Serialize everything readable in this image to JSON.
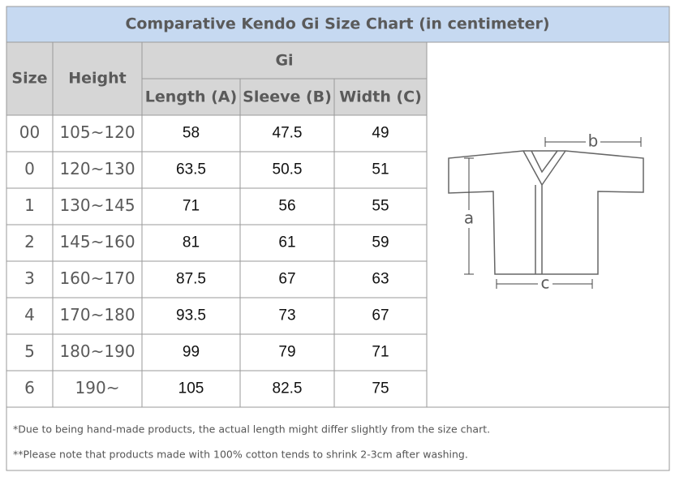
{
  "header": {
    "title": "Comparative Kendo Gi Size Chart (in centimeter)"
  },
  "table": {
    "columns": [
      "Size",
      "Height"
    ],
    "group": "Gi",
    "subcolumns": [
      "Length (A)",
      "Sleeve (B)",
      "Width (C)"
    ],
    "rows": [
      [
        "00",
        "105~120",
        "58",
        "47.5",
        "49"
      ],
      [
        "0",
        "120~130",
        "63.5",
        "50.5",
        "51"
      ],
      [
        "1",
        "130~145",
        "71",
        "56",
        "55"
      ],
      [
        "2",
        "145~160",
        "81",
        "61",
        "59"
      ],
      [
        "3",
        "160~170",
        "87.5",
        "67",
        "63"
      ],
      [
        "4",
        "170~180",
        "93.5",
        "73",
        "67"
      ],
      [
        "5",
        "180~190",
        "99",
        "79",
        "71"
      ],
      [
        "6",
        "190~",
        "105",
        "82.5",
        "75"
      ]
    ]
  },
  "diagram": {
    "labels": [
      "a",
      "b",
      "c"
    ]
  },
  "notes": [
    "*Due to being hand-made products, the actual length might differ slightly from the size chart.",
    "**Please note that products made with 100% cotton tends to shrink 2-3cm after washing."
  ]
}
